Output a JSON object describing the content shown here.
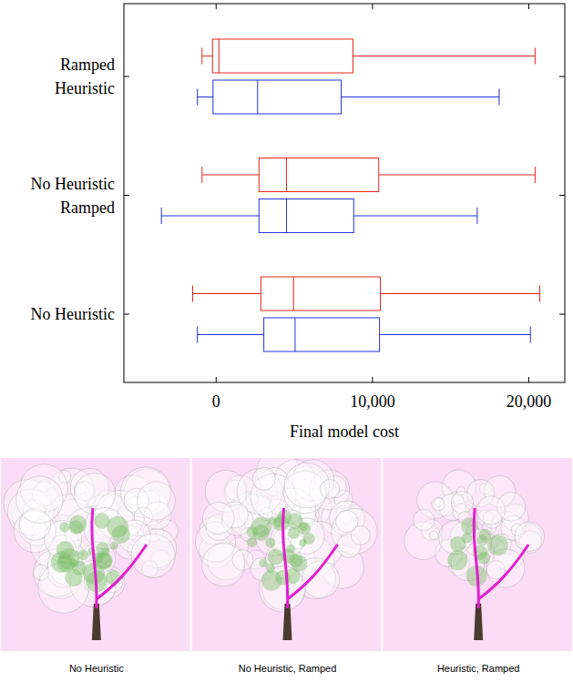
{
  "chart_data": {
    "type": "box",
    "orientation": "horizontal",
    "xlabel": "Final model cost",
    "categories": [
      [
        "Ramped",
        "Heuristic"
      ],
      [
        "No Heuristic",
        "Ramped"
      ],
      [
        "No Heuristic"
      ]
    ],
    "series": [
      {
        "color": "#e8261c",
        "values": [
          [
            -900,
            -230,
            175,
            8750,
            20400
          ],
          [
            -900,
            2740,
            4500,
            10400,
            20400
          ],
          [
            -1500,
            2860,
            4950,
            10500,
            20700
          ]
        ]
      },
      {
        "color": "#2233dd",
        "values": [
          [
            -1200,
            -200,
            2650,
            8000,
            18100
          ],
          [
            -3500,
            2740,
            4500,
            8800,
            16700
          ],
          [
            -1200,
            3050,
            5050,
            10450,
            20100
          ]
        ]
      }
    ],
    "xlim": [
      -5900,
      22300
    ],
    "xticks": [
      0,
      {
        "value": 10000,
        "label": "10,000"
      },
      {
        "value": 20000,
        "label": "20,000"
      }
    ]
  },
  "images": {
    "captions": [
      "No Heuristic",
      "No Heuristic, Ramped",
      "Heuristic, Ramped"
    ]
  }
}
